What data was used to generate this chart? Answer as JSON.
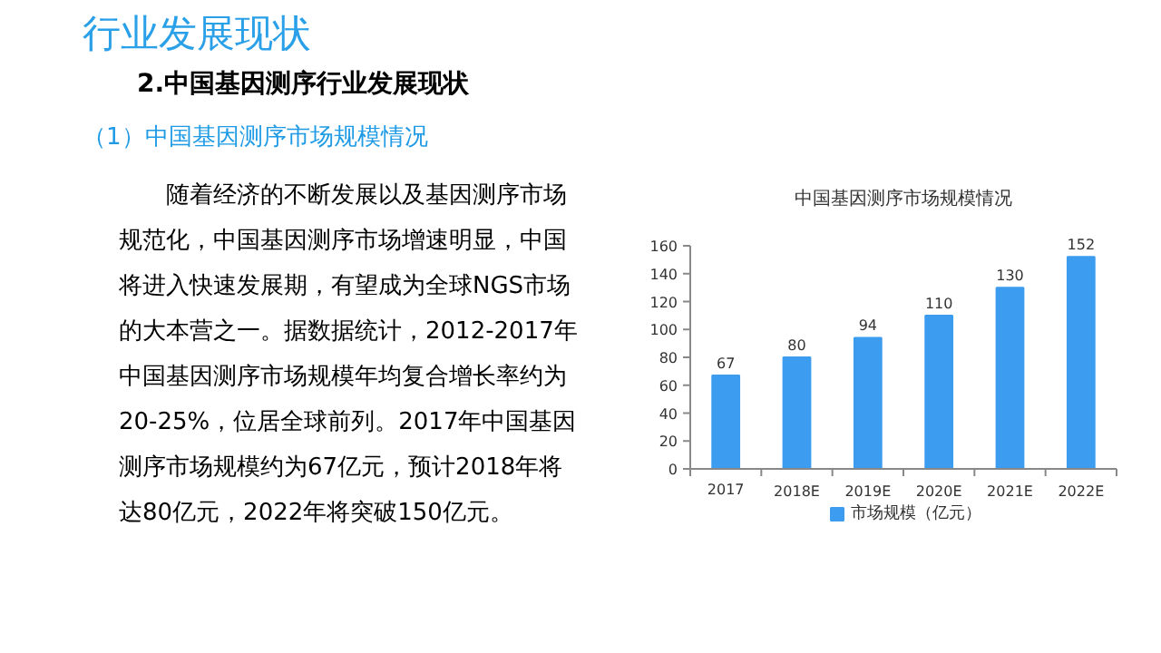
{
  "chart_data": {
    "type": "bar",
    "title": "中国基因测序市场规模情况",
    "annotations": [
      "行业发展现状",
      "2.中国基因测序行业发展现状",
      "（1）中国基因测序市场规模情况",
      "随着经济的不断发展以及基因测序市场规范化，中国基因测序市场增速明显，中国将进入快速发展期，有望成为全球NGS市场的大本营之一。据数据统计，2012-2017年中国基因测序市场规模年均复合增长率约为20-25%，位居全球前列。2017年中国基因测序市场规模约为67亿元，预计2018年将达80亿元，2022年将突破150亿元。"
    ],
    "categories": [
      "2017",
      "2018E",
      "2019E",
      "2020E",
      "2021E",
      "2022E"
    ],
    "series": [
      {
        "name": "市场规模（亿元）",
        "color": "#3b9cf0",
        "values": [
          67,
          80,
          94,
          110,
          130,
          152
        ]
      }
    ],
    "ylim": [
      0,
      160
    ],
    "yticks": [
      0,
      20,
      40,
      60,
      80,
      100,
      120,
      140,
      160
    ],
    "data_labels": true,
    "legend": "bottom",
    "grid": false
  }
}
